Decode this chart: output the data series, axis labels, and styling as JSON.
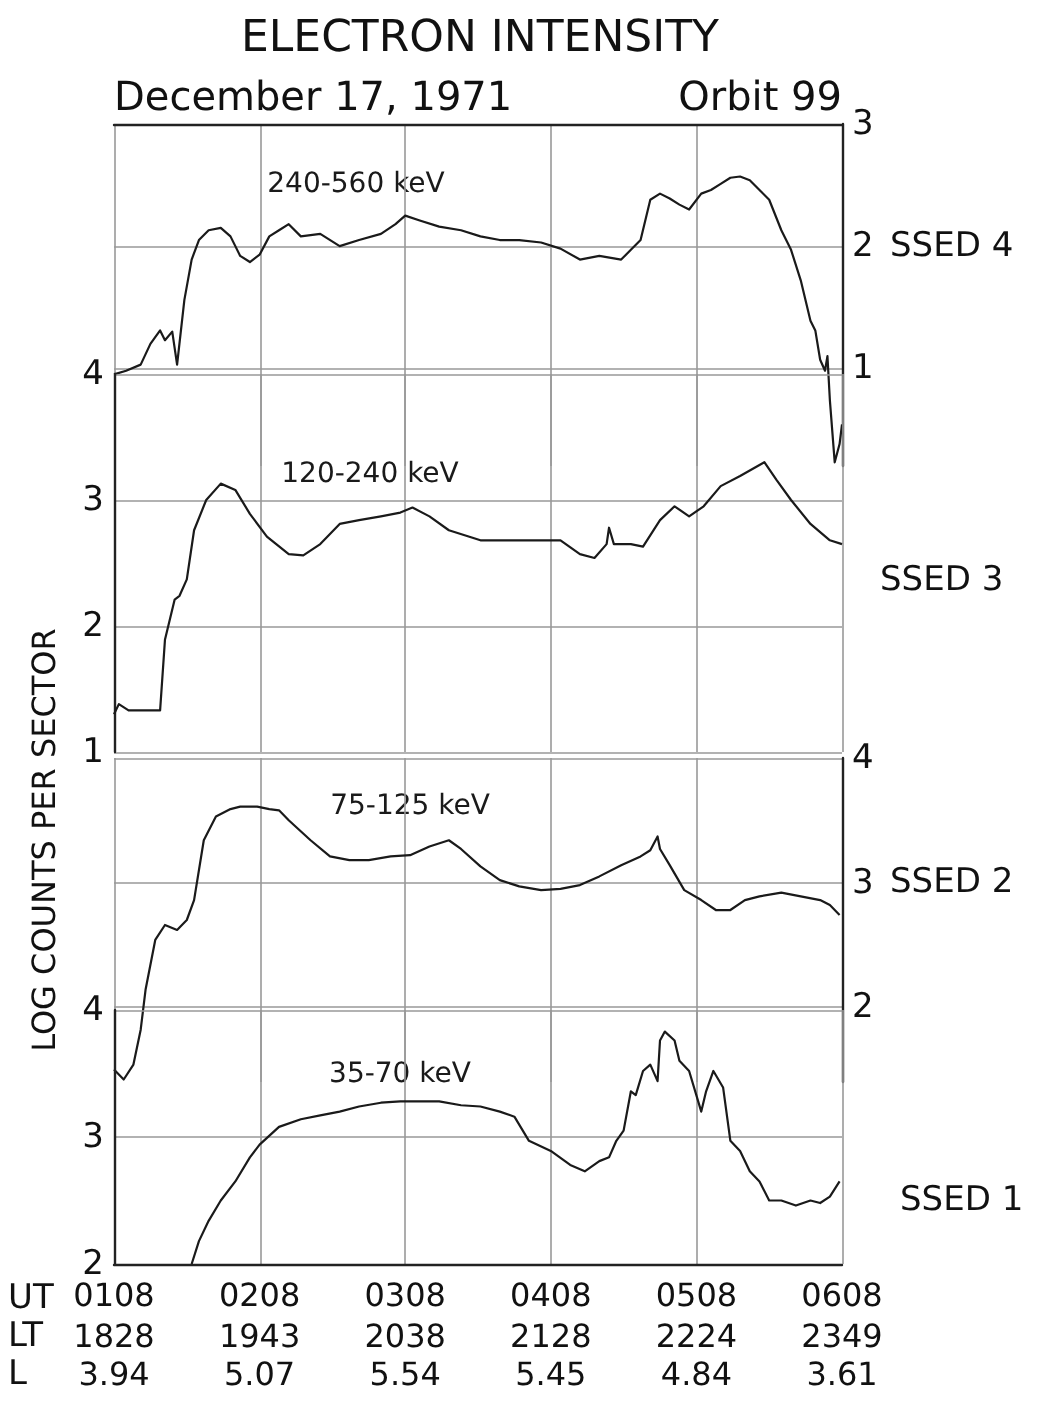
{
  "chart_data": [
    {
      "type": "line",
      "title": "ELECTRON INTENSITY",
      "subtitle": "December 17, 1971",
      "annotations": [
        "Orbit 99",
        "SSED 4"
      ],
      "grid": true,
      "tick_labels": "y",
      "xlim": [
        "1971-12-17T01:08",
        "1971-12-17T06:08"
      ],
      "xticks": [
        {
          "value": "1971-12-17T01:08",
          "label": null
        },
        {
          "value": "1971-12-17T02:08",
          "label": null
        },
        {
          "value": "1971-12-17T03:08",
          "label": null
        },
        {
          "value": "1971-12-17T04:08",
          "label": null
        },
        {
          "value": "1971-12-17T05:08",
          "label": null
        },
        {
          "value": "1971-12-17T06:08",
          "label": null
        }
      ],
      "y2lim": [
        0.2,
        3
      ],
      "y2ticks": [
        1,
        2,
        3
      ],
      "series": [
        {
          "name": "240-560 keV",
          "color": "#1a1a1a",
          "axis": "y2",
          "x": [
            "1971-12-17T01:08",
            "1971-12-17T01:13",
            "1971-12-17T01:19",
            "1971-12-17T01:23",
            "1971-12-17T01:27",
            "1971-12-17T01:29",
            "1971-12-17T01:32",
            "1971-12-17T01:34",
            "1971-12-17T01:37",
            "1971-12-17T01:40",
            "1971-12-17T01:43",
            "1971-12-17T01:47",
            "1971-12-17T01:52",
            "1971-12-17T01:56",
            "1971-12-17T02:00",
            "1971-12-17T02:04",
            "1971-12-17T02:08",
            "1971-12-17T02:12",
            "1971-12-17T02:16",
            "1971-12-17T02:20",
            "1971-12-17T02:25",
            "1971-12-17T02:33",
            "1971-12-17T02:41",
            "1971-12-17T02:49",
            "1971-12-17T02:58",
            "1971-12-17T03:04",
            "1971-12-17T03:08",
            "1971-12-17T03:14",
            "1971-12-17T03:22",
            "1971-12-17T03:31",
            "1971-12-17T03:39",
            "1971-12-17T03:47",
            "1971-12-17T03:55",
            "1971-12-17T04:04",
            "1971-12-17T04:12",
            "1971-12-17T04:20",
            "1971-12-17T04:28",
            "1971-12-17T04:37",
            "1971-12-17T04:41",
            "1971-12-17T04:45",
            "1971-12-17T04:49",
            "1971-12-17T04:53",
            "1971-12-17T04:57",
            "1971-12-17T05:01",
            "1971-12-17T05:05",
            "1971-12-17T05:10",
            "1971-12-17T05:14",
            "1971-12-17T05:18",
            "1971-12-17T05:22",
            "1971-12-17T05:26",
            "1971-12-17T05:30",
            "1971-12-17T05:34",
            "1971-12-17T05:38",
            "1971-12-17T05:43",
            "1971-12-17T05:47",
            "1971-12-17T05:51",
            "1971-12-17T05:55",
            "1971-12-17T05:57",
            "1971-12-17T05:59",
            "1971-12-17T06:01",
            "1971-12-17T06:02",
            "1971-12-17T06:03",
            "1971-12-17T06:05",
            "1971-12-17T06:07",
            "1971-12-17T06:08"
          ],
          "values": [
            0.95,
            0.98,
            1.03,
            1.2,
            1.31,
            1.23,
            1.3,
            1.03,
            1.56,
            1.89,
            2.05,
            2.13,
            2.15,
            2.08,
            1.92,
            1.87,
            1.93,
            2.08,
            2.13,
            2.18,
            2.08,
            2.1,
            2.0,
            2.05,
            2.1,
            2.18,
            2.25,
            2.21,
            2.16,
            2.13,
            2.08,
            2.05,
            2.05,
            2.03,
            1.98,
            1.89,
            1.92,
            1.89,
            1.97,
            2.05,
            2.38,
            2.43,
            2.39,
            2.34,
            2.3,
            2.43,
            2.46,
            2.51,
            2.56,
            2.57,
            2.54,
            2.46,
            2.38,
            2.13,
            1.97,
            1.72,
            1.39,
            1.31,
            1.07,
            0.98,
            1.1,
            0.74,
            0.23,
            0.38,
            0.54
          ]
        }
      ]
    },
    {
      "type": "line",
      "ylabel": "LOG COUNTS PER SECTOR",
      "annotations": [
        "SSED 3"
      ],
      "grid": true,
      "tick_labels": "y",
      "xlim": [
        "1971-12-17T01:08",
        "1971-12-17T06:08"
      ],
      "xticks": [
        {
          "value": "1971-12-17T01:08",
          "label": null
        },
        {
          "value": "1971-12-17T02:08",
          "label": null
        },
        {
          "value": "1971-12-17T03:08",
          "label": null
        },
        {
          "value": "1971-12-17T04:08",
          "label": null
        },
        {
          "value": "1971-12-17T05:08",
          "label": null
        },
        {
          "value": "1971-12-17T06:08",
          "label": null
        }
      ],
      "ylim": [
        1,
        4
      ],
      "yticks": [
        1,
        2,
        3,
        4
      ],
      "series": [
        {
          "name": "120-240 keV",
          "color": "#1a1a1a",
          "x": [
            "1971-12-17T01:08",
            "1971-12-17T01:10",
            "1971-12-17T01:14",
            "1971-12-17T01:19",
            "1971-12-17T01:23",
            "1971-12-17T01:27",
            "1971-12-17T01:29",
            "1971-12-17T01:33",
            "1971-12-17T01:35",
            "1971-12-17T01:38",
            "1971-12-17T01:41",
            "1971-12-17T01:46",
            "1971-12-17T01:52",
            "1971-12-17T01:58",
            "1971-12-17T02:04",
            "1971-12-17T02:11",
            "1971-12-17T02:20",
            "1971-12-17T02:26",
            "1971-12-17T02:33",
            "1971-12-17T02:41",
            "1971-12-17T02:49",
            "1971-12-17T02:58",
            "1971-12-17T03:06",
            "1971-12-17T03:11",
            "1971-12-17T03:18",
            "1971-12-17T03:26",
            "1971-12-17T03:39",
            "1971-12-17T03:51",
            "1971-12-17T04:04",
            "1971-12-17T04:12",
            "1971-12-17T04:20",
            "1971-12-17T04:26",
            "1971-12-17T04:31",
            "1971-12-17T04:32",
            "1971-12-17T04:34",
            "1971-12-17T04:41",
            "1971-12-17T04:46",
            "1971-12-17T04:53",
            "1971-12-17T04:59",
            "1971-12-17T05:05",
            "1971-12-17T05:11",
            "1971-12-17T05:18",
            "1971-12-17T05:26",
            "1971-12-17T05:36",
            "1971-12-17T05:41",
            "1971-12-17T05:47",
            "1971-12-17T05:55",
            "1971-12-17T06:03",
            "1971-12-17T06:08"
          ],
          "values": [
            1.3,
            1.38,
            1.33,
            1.33,
            1.33,
            1.33,
            1.89,
            2.21,
            2.24,
            2.37,
            2.76,
            3.0,
            3.13,
            3.08,
            2.89,
            2.71,
            2.57,
            2.56,
            2.65,
            2.81,
            2.84,
            2.87,
            2.9,
            2.94,
            2.87,
            2.76,
            2.68,
            2.68,
            2.68,
            2.68,
            2.57,
            2.54,
            2.65,
            2.78,
            2.65,
            2.65,
            2.63,
            2.84,
            2.95,
            2.87,
            2.95,
            3.11,
            3.19,
            3.3,
            3.16,
            3.0,
            2.81,
            2.68,
            2.65
          ]
        }
      ]
    },
    {
      "type": "line",
      "annotations": [
        "SSED 2"
      ],
      "grid": true,
      "tick_labels": "y",
      "xlim": [
        "1971-12-17T01:08",
        "1971-12-17T06:08"
      ],
      "xticks": [
        {
          "value": "1971-12-17T01:08",
          "label": null
        },
        {
          "value": "1971-12-17T02:08",
          "label": null
        },
        {
          "value": "1971-12-17T03:08",
          "label": null
        },
        {
          "value": "1971-12-17T04:08",
          "label": null
        },
        {
          "value": "1971-12-17T05:08",
          "label": null
        },
        {
          "value": "1971-12-17T06:08",
          "label": null
        }
      ],
      "y2lim": [
        1.4,
        4
      ],
      "y2ticks": [
        2,
        3,
        4
      ],
      "series": [
        {
          "name": "75-125 keV",
          "color": "#1a1a1a",
          "axis": "y2",
          "x": [
            "1971-12-17T01:08",
            "1971-12-17T01:12",
            "1971-12-17T01:16",
            "1971-12-17T01:19",
            "1971-12-17T01:21",
            "1971-12-17T01:25",
            "1971-12-17T01:29",
            "1971-12-17T01:34",
            "1971-12-17T01:38",
            "1971-12-17T01:41",
            "1971-12-17T01:45",
            "1971-12-17T01:50",
            "1971-12-17T01:56",
            "1971-12-17T02:00",
            "1971-12-17T02:07",
            "1971-12-17T02:12",
            "1971-12-17T02:16",
            "1971-12-17T02:20",
            "1971-12-17T02:29",
            "1971-12-17T02:37",
            "1971-12-17T02:45",
            "1971-12-17T02:53",
            "1971-12-17T03:02",
            "1971-12-17T03:10",
            "1971-12-17T03:18",
            "1971-12-17T03:26",
            "1971-12-17T03:31",
            "1971-12-17T03:39",
            "1971-12-17T03:47",
            "1971-12-17T03:55",
            "1971-12-17T04:04",
            "1971-12-17T04:12",
            "1971-12-17T04:20",
            "1971-12-17T04:28",
            "1971-12-17T04:37",
            "1971-12-17T04:45",
            "1971-12-17T04:49",
            "1971-12-17T04:52",
            "1971-12-17T04:53",
            "1971-12-17T04:57",
            "1971-12-17T05:03",
            "1971-12-17T05:10",
            "1971-12-17T05:16",
            "1971-12-17T05:22",
            "1971-12-17T05:28",
            "1971-12-17T05:34",
            "1971-12-17T05:43",
            "1971-12-17T05:51",
            "1971-12-17T05:59",
            "1971-12-17T06:03",
            "1971-12-17T06:07"
          ],
          "values": [
            1.5,
            1.42,
            1.54,
            1.82,
            2.14,
            2.54,
            2.66,
            2.62,
            2.7,
            2.86,
            3.34,
            3.53,
            3.59,
            3.61,
            3.61,
            3.59,
            3.58,
            3.5,
            3.34,
            3.21,
            3.18,
            3.18,
            3.21,
            3.22,
            3.29,
            3.34,
            3.27,
            3.13,
            3.02,
            2.97,
            2.94,
            2.95,
            2.98,
            3.05,
            3.14,
            3.21,
            3.26,
            3.37,
            3.27,
            3.14,
            2.94,
            2.86,
            2.78,
            2.78,
            2.86,
            2.89,
            2.92,
            2.89,
            2.86,
            2.82,
            2.74
          ]
        }
      ]
    },
    {
      "type": "line",
      "annotations": [
        "SSED 1",
        "UT",
        "LT",
        "L",
        "1828",
        "1943",
        "2038",
        "2128",
        "2224",
        "2349",
        "3.94",
        "5.07",
        "5.54",
        "5.45",
        "4.84",
        "3.61"
      ],
      "grid": true,
      "xlim": [
        "1971-12-17T01:08",
        "1971-12-17T06:08"
      ],
      "xticks": [
        {
          "value": "1971-12-17T01:08",
          "label": "0108"
        },
        {
          "value": "1971-12-17T02:08",
          "label": "0208"
        },
        {
          "value": "1971-12-17T03:08",
          "label": "0308"
        },
        {
          "value": "1971-12-17T04:08",
          "label": "0408"
        },
        {
          "value": "1971-12-17T05:08",
          "label": "0508"
        },
        {
          "value": "1971-12-17T06:08",
          "label": "0608"
        }
      ],
      "ylim": [
        2,
        4
      ],
      "yticks": [
        2,
        3,
        4
      ],
      "series": [
        {
          "name": "35-70 keV",
          "color": "#1a1a1a",
          "x": [
            "1971-12-17T01:40",
            "1971-12-17T01:43",
            "1971-12-17T01:47",
            "1971-12-17T01:52",
            "1971-12-17T01:58",
            "1971-12-17T02:04",
            "1971-12-17T02:08",
            "1971-12-17T02:16",
            "1971-12-17T02:25",
            "1971-12-17T02:33",
            "1971-12-17T02:41",
            "1971-12-17T02:49",
            "1971-12-17T02:58",
            "1971-12-17T03:06",
            "1971-12-17T03:14",
            "1971-12-17T03:22",
            "1971-12-17T03:31",
            "1971-12-17T03:39",
            "1971-12-17T03:47",
            "1971-12-17T03:53",
            "1971-12-17T03:59",
            "1971-12-17T04:08",
            "1971-12-17T04:16",
            "1971-12-17T04:22",
            "1971-12-17T04:28",
            "1971-12-17T04:32",
            "1971-12-17T04:35",
            "1971-12-17T04:38",
            "1971-12-17T04:41",
            "1971-12-17T04:43",
            "1971-12-17T04:46",
            "1971-12-17T04:49",
            "1971-12-17T04:52",
            "1971-12-17T04:53",
            "1971-12-17T04:55",
            "1971-12-17T04:59",
            "1971-12-17T05:01",
            "1971-12-17T05:05",
            "1971-12-17T05:10",
            "1971-12-17T05:12",
            "1971-12-17T05:15",
            "1971-12-17T05:19",
            "1971-12-17T05:22",
            "1971-12-17T05:26",
            "1971-12-17T05:30",
            "1971-12-17T05:34",
            "1971-12-17T05:38",
            "1971-12-17T05:43",
            "1971-12-17T05:49",
            "1971-12-17T05:55",
            "1971-12-17T05:59",
            "1971-12-17T06:03",
            "1971-12-17T06:07"
          ],
          "values": [
            2.0,
            2.18,
            2.34,
            2.5,
            2.65,
            2.84,
            2.94,
            3.08,
            3.14,
            3.17,
            3.2,
            3.24,
            3.27,
            3.28,
            3.28,
            3.28,
            3.25,
            3.24,
            3.2,
            3.16,
            2.97,
            2.89,
            2.78,
            2.73,
            2.81,
            2.84,
            2.97,
            3.05,
            3.36,
            3.33,
            3.52,
            3.57,
            3.44,
            3.76,
            3.83,
            3.76,
            3.6,
            3.52,
            3.2,
            3.36,
            3.52,
            3.39,
            2.97,
            2.89,
            2.73,
            2.65,
            2.5,
            2.5,
            2.46,
            2.5,
            2.48,
            2.53,
            2.65
          ]
        }
      ]
    }
  ]
}
